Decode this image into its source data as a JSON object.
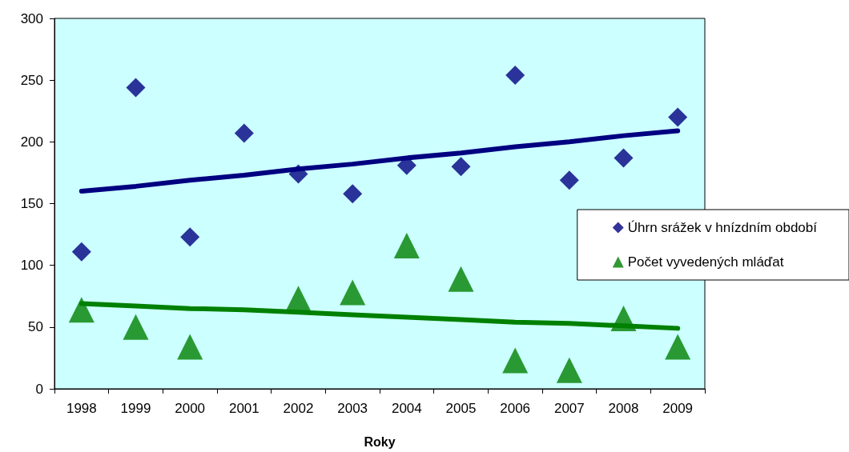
{
  "chart_data": {
    "type": "scatter",
    "xlabel": "Roky",
    "categories": [
      "1998",
      "1999",
      "2000",
      "2001",
      "2002",
      "2003",
      "2004",
      "2005",
      "2006",
      "2007",
      "2008",
      "2009"
    ],
    "series": [
      {
        "name": "Úhrn srážek v hnízdním období",
        "color": "#000080",
        "marker": "diamond",
        "values": [
          111,
          244,
          123,
          207,
          174,
          158,
          181,
          180,
          254,
          169,
          187,
          220
        ]
      },
      {
        "name": "Počet vyvedených mláďat",
        "color": "#008000",
        "marker": "triangle",
        "values": [
          64,
          50,
          34,
          null,
          73,
          78,
          116,
          89,
          23,
          15,
          57,
          34
        ]
      },
      {
        "type": "line",
        "color": "#000080",
        "marker": "none",
        "values": [
          160,
          164,
          169,
          173,
          178,
          182,
          187,
          191,
          196,
          200,
          205,
          209
        ]
      },
      {
        "type": "line",
        "color": "#008000",
        "marker": "none",
        "values": [
          69,
          67,
          65,
          64,
          62,
          60,
          58,
          56,
          54,
          53,
          51,
          49
        ]
      }
    ],
    "ylim": [
      0,
      300
    ],
    "yticks": [
      0,
      50,
      100,
      150,
      200,
      250,
      300
    ],
    "grid": false,
    "legend": "right"
  }
}
